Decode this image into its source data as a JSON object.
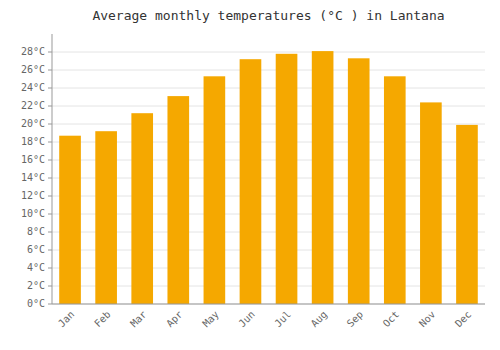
{
  "chart_data": {
    "type": "bar",
    "title": "Average monthly temperatures (°C ) in Lantana",
    "categories": [
      "Jan",
      "Feb",
      "Mar",
      "Apr",
      "May",
      "Jun",
      "Jul",
      "Aug",
      "Sep",
      "Oct",
      "Nov",
      "Dec"
    ],
    "values": [
      18.7,
      19.2,
      21.2,
      23.1,
      25.3,
      27.2,
      27.8,
      28.1,
      27.3,
      25.3,
      22.4,
      19.9
    ],
    "color": "#F5A800",
    "ylim": [
      0,
      30
    ],
    "yticks": [
      {
        "value": 0,
        "label": "0°C"
      },
      {
        "value": 2,
        "label": "2°C"
      },
      {
        "value": 4,
        "label": "4°C"
      },
      {
        "value": 6,
        "label": "6°C"
      },
      {
        "value": 8,
        "label": "8°C"
      },
      {
        "value": 10,
        "label": "10°C"
      },
      {
        "value": 12,
        "label": "12°C"
      },
      {
        "value": 14,
        "label": "14°C"
      },
      {
        "value": 16,
        "label": "16°C"
      },
      {
        "value": 18,
        "label": "18°C"
      },
      {
        "value": 20,
        "label": "20°C"
      },
      {
        "value": 22,
        "label": "22°C"
      },
      {
        "value": 24,
        "label": "24°C"
      },
      {
        "value": 26,
        "label": "26°C"
      },
      {
        "value": 28,
        "label": "28°C"
      }
    ],
    "grid": true
  }
}
